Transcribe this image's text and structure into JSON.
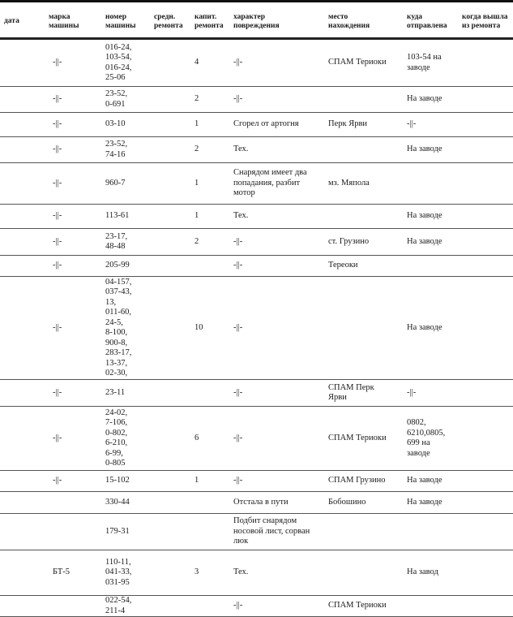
{
  "headers": [
    "дата",
    "марка\nмашины",
    "номер\nмашины",
    "средн.\nремонта",
    "капит.\nремонта",
    "характер\nповреждения",
    "место\nнахождения",
    "куда\nотправлена",
    "когда вышла\nиз ремонта"
  ],
  "rows": [
    {
      "date": "",
      "mark": "-||-",
      "number": "016-24,\n103-54,\n016-24,\n25-06",
      "mid": "",
      "cap": "4",
      "damage": "-||-",
      "place": "СПАМ Териоки",
      "sent": "103-54 на\nзаводе",
      "left": ""
    },
    {
      "date": "",
      "mark": "-||-",
      "number": "23-52,\n0-691",
      "mid": "",
      "cap": "2",
      "damage": "-||-",
      "place": "",
      "sent": "На заводе",
      "left": ""
    },
    {
      "date": "",
      "mark": "-||-",
      "number": "03-10",
      "mid": "",
      "cap": "1",
      "damage": "Сгорел от артогня",
      "place": "Перк Ярви",
      "sent": "-||-",
      "left": ""
    },
    {
      "date": "",
      "mark": "-||-",
      "number": "23-52,\n74-16",
      "mid": "",
      "cap": "2",
      "damage": "Тех.",
      "place": "",
      "sent": "На заводе",
      "left": ""
    },
    {
      "date": "",
      "mark": "-||-",
      "number": "960-7",
      "mid": "",
      "cap": "1",
      "damage": "Снарядом имеет два\nпопадания, разбит\nмотор",
      "place": "мз. Мяпола",
      "sent": "",
      "left": ""
    },
    {
      "date": "",
      "mark": "-||-",
      "number": "113-61",
      "mid": "",
      "cap": "1",
      "damage": "Тех.",
      "place": "",
      "sent": "На заводе",
      "left": ""
    },
    {
      "date": "",
      "mark": "-||-",
      "number": "23-17,\n48-48",
      "mid": "",
      "cap": "2",
      "damage": "-||-",
      "place": "ст. Грузино",
      "sent": "На заводе",
      "left": ""
    },
    {
      "date": "",
      "mark": "-||-",
      "number": "205-99",
      "mid": "",
      "cap": "",
      "damage": "-||-",
      "place": "Тереоки",
      "sent": "",
      "left": ""
    },
    {
      "date": "",
      "mark": "-||-",
      "number": "04-157,\n037-43,\n13,\n011-60,\n24-5,\n8-100,\n900-8,\n283-17,\n13-37,\n02-30,",
      "mid": "",
      "cap": "10",
      "damage": "-||-",
      "place": "",
      "sent": "На заводе",
      "left": ""
    },
    {
      "date": "",
      "mark": "-||-",
      "number": "23-11",
      "mid": "",
      "cap": "",
      "damage": "-||-",
      "place": "СПАМ Перк\nЯрви",
      "sent": "-||-",
      "left": ""
    },
    {
      "date": "",
      "mark": "-||-",
      "number": "24-02,\n7-106,\n0-802,\n6-210,\n6-99,\n0-805",
      "mid": "",
      "cap": "6",
      "damage": "-||-",
      "place": "СПАМ Териоки",
      "sent": "0802,\n6210,0805,\n699 на\nзаводе",
      "left": ""
    },
    {
      "date": "",
      "mark": "-||-",
      "number": "15-102",
      "mid": "",
      "cap": "1",
      "damage": "-||-",
      "place": "СПАМ Грузино",
      "sent": "На заводе",
      "left": ""
    },
    {
      "date": "",
      "mark": "",
      "number": "330-44",
      "mid": "",
      "cap": "",
      "damage": "Отстала в пути",
      "place": "Бобошино",
      "sent": "На заводе",
      "left": ""
    },
    {
      "date": "",
      "mark": "",
      "number": "179-31",
      "mid": "",
      "cap": "",
      "damage": "Подбит снарядом\nносовой лист, сорван\nлюк",
      "place": "",
      "sent": "",
      "left": ""
    },
    {
      "date": "",
      "mark": "БТ-5",
      "number": "110-11,\n041-33,\n031-95",
      "mid": "",
      "cap": "3",
      "damage": "Тех.",
      "place": "",
      "sent": "На завод",
      "left": ""
    },
    {
      "date": "",
      "mark": "",
      "number": "022-54,\n211-4",
      "mid": "",
      "cap": "",
      "damage": "-||-",
      "place": "СПАМ Териоки",
      "sent": "",
      "left": ""
    }
  ]
}
